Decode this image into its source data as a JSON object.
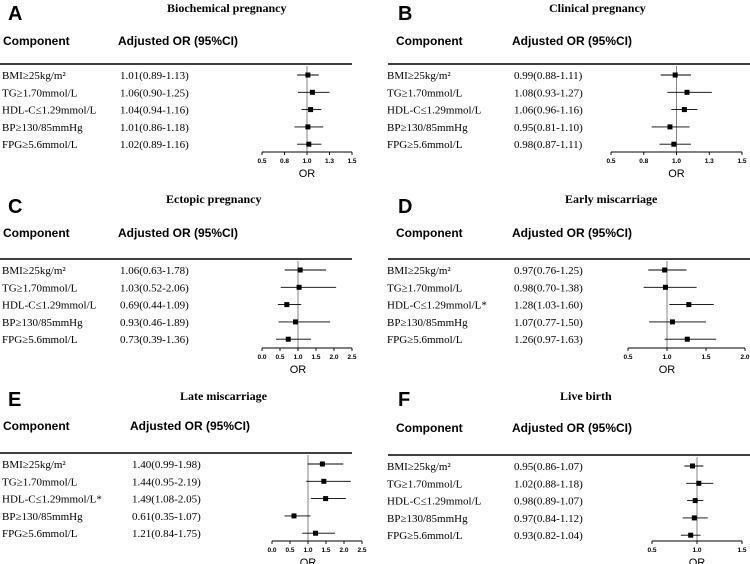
{
  "figure": {
    "header_component": "Component",
    "header_or": "Adjusted OR (95%CI)",
    "x_axis_label": "OR"
  },
  "chart_data": [
    {
      "type": "forest",
      "panel": "A",
      "title": "Biochemical pregnancy",
      "xlabel": "OR",
      "xlim": [
        0.5,
        1.5
      ],
      "ticks": [
        "0.5",
        "0.8",
        "1.0",
        "1.3",
        "1.5"
      ],
      "tick_values": [
        0.5,
        0.75,
        1.0,
        1.25,
        1.5
      ],
      "reference": 1.0,
      "rows": [
        {
          "component": "BMI≥25kg/m²",
          "label": "1.01(0.89-1.13)",
          "or": 1.01,
          "lo": 0.89,
          "hi": 1.13
        },
        {
          "component": "TG≥1.70mmol/L",
          "label": "1.06(0.90-1.25)",
          "or": 1.06,
          "lo": 0.9,
          "hi": 1.25
        },
        {
          "component": "HDL-C≤1.29mmol/L",
          "label": "1.04(0.94-1.16)",
          "or": 1.04,
          "lo": 0.94,
          "hi": 1.16
        },
        {
          "component": "BP≥130/85mmHg",
          "label": "1.01(0.86-1.18)",
          "or": 1.01,
          "lo": 0.86,
          "hi": 1.18
        },
        {
          "component": "FPG≥5.6mmol/L",
          "label": "1.02(0.89-1.16)",
          "or": 1.02,
          "lo": 0.89,
          "hi": 1.16
        }
      ]
    },
    {
      "type": "forest",
      "panel": "B",
      "title": "Clinical pregnancy",
      "xlabel": "OR",
      "xlim": [
        0.5,
        1.5
      ],
      "ticks": [
        "0.5",
        "0.8",
        "1.0",
        "1.3",
        "1.5"
      ],
      "tick_values": [
        0.5,
        0.75,
        1.0,
        1.25,
        1.5
      ],
      "reference": 1.0,
      "rows": [
        {
          "component": "BMI≥25kg/m²",
          "label": "0.99(0.88-1.11)",
          "or": 0.99,
          "lo": 0.88,
          "hi": 1.11
        },
        {
          "component": "TG≥1.70mmol/L",
          "label": "1.08(0.93-1.27)",
          "or": 1.08,
          "lo": 0.93,
          "hi": 1.27
        },
        {
          "component": "HDL-C≤1.29mmol/L",
          "label": "1.06(0.96-1.16)",
          "or": 1.06,
          "lo": 0.96,
          "hi": 1.16
        },
        {
          "component": "BP≥130/85mmHg",
          "label": "0.95(0.81-1.10)",
          "or": 0.95,
          "lo": 0.81,
          "hi": 1.1
        },
        {
          "component": "FPG≥5.6mmol/L",
          "label": "0.98(0.87-1.11)",
          "or": 0.98,
          "lo": 0.87,
          "hi": 1.11
        }
      ]
    },
    {
      "type": "forest",
      "panel": "C",
      "title": "Ectopic pregnancy",
      "xlabel": "OR",
      "xlim": [
        0.0,
        2.5
      ],
      "ticks": [
        "0.0",
        "0.5",
        "1.0",
        "1.5",
        "2.0",
        "2.5"
      ],
      "tick_values": [
        0.0,
        0.5,
        1.0,
        1.5,
        2.0,
        2.5
      ],
      "reference": 1.0,
      "rows": [
        {
          "component": "BMI≥25kg/m²",
          "label": "1.06(0.63-1.78)",
          "or": 1.06,
          "lo": 0.63,
          "hi": 1.78
        },
        {
          "component": "TG≥1.70mmol/L",
          "label": "1.03(0.52-2.06)",
          "or": 1.03,
          "lo": 0.52,
          "hi": 2.06
        },
        {
          "component": "HDL-C≤1.29mmol/L",
          "label": "0.69(0.44-1.09)",
          "or": 0.69,
          "lo": 0.44,
          "hi": 1.09
        },
        {
          "component": "BP≥130/85mmHg",
          "label": "0.93(0.46-1.89)",
          "or": 0.93,
          "lo": 0.46,
          "hi": 1.89
        },
        {
          "component": "FPG≥5.6mmol/L",
          "label": "0.73(0.39-1.36)",
          "or": 0.73,
          "lo": 0.39,
          "hi": 1.36
        }
      ]
    },
    {
      "type": "forest",
      "panel": "D",
      "title": "Early miscarriage",
      "xlabel": "OR",
      "xlim": [
        0.5,
        2.0
      ],
      "ticks": [
        "0.5",
        "1.0",
        "1.5",
        "2.0"
      ],
      "tick_values": [
        0.5,
        1.0,
        1.5,
        2.0
      ],
      "reference": 1.0,
      "rows": [
        {
          "component": "BMI≥25kg/m²",
          "label": "0.97(0.76-1.25)",
          "or": 0.97,
          "lo": 0.76,
          "hi": 1.25
        },
        {
          "component": "TG≥1.70mmol/L",
          "label": "0.98(0.70-1.38)",
          "or": 0.98,
          "lo": 0.7,
          "hi": 1.38
        },
        {
          "component": "HDL-C≤1.29mmol/L*",
          "label": "1.28(1.03-1.60)",
          "or": 1.28,
          "lo": 1.03,
          "hi": 1.6
        },
        {
          "component": "BP≥130/85mmHg",
          "label": "1.07(0.77-1.50)",
          "or": 1.07,
          "lo": 0.77,
          "hi": 1.5
        },
        {
          "component": "FPG≥5.6mmol/L",
          "label": "1.26(0.97-1.63)",
          "or": 1.26,
          "lo": 0.97,
          "hi": 1.63
        }
      ]
    },
    {
      "type": "forest",
      "panel": "E",
      "title": "Late miscarriage",
      "xlabel": "OR",
      "xlim": [
        0.0,
        2.5
      ],
      "ticks": [
        "0.0",
        "0.5",
        "1.0",
        "1.5",
        "2.0",
        "2.5"
      ],
      "tick_values": [
        0.0,
        0.5,
        1.0,
        1.5,
        2.0,
        2.5
      ],
      "reference": 1.0,
      "rows": [
        {
          "component": "BMI≥25kg/m²",
          "label": "1.40(0.99-1.98)",
          "or": 1.4,
          "lo": 0.99,
          "hi": 1.98
        },
        {
          "component": "TG≥1.70mmol/L",
          "label": "1.44(0.95-2.19)",
          "or": 1.44,
          "lo": 0.95,
          "hi": 2.19
        },
        {
          "component": "HDL-C≤1.29mmol/L*",
          "label": "1.49(1.08-2.05)",
          "or": 1.49,
          "lo": 1.08,
          "hi": 2.05
        },
        {
          "component": "BP≥130/85mmHg",
          "label": "0.61(0.35-1.07)",
          "or": 0.61,
          "lo": 0.35,
          "hi": 1.07
        },
        {
          "component": "FPG≥5.6mmol/L",
          "label": "1.21(0.84-1.75)",
          "or": 1.21,
          "lo": 0.84,
          "hi": 1.75
        }
      ]
    },
    {
      "type": "forest",
      "panel": "F",
      "title": "Live birth",
      "xlabel": "OR",
      "xlim": [
        0.5,
        1.5
      ],
      "ticks": [
        "0.5",
        "1.0",
        "1.5"
      ],
      "tick_values": [
        0.5,
        1.0,
        1.5
      ],
      "reference": 1.0,
      "rows": [
        {
          "component": "BMI≥25kg/m²",
          "label": "0.95(0.86-1.07)",
          "or": 0.95,
          "lo": 0.86,
          "hi": 1.07
        },
        {
          "component": "TG≥1.70mmol/L",
          "label": "1.02(0.88-1.18)",
          "or": 1.02,
          "lo": 0.88,
          "hi": 1.18
        },
        {
          "component": "HDL-C≤1.29mmol/L",
          "label": "0.98(0.89-1.07)",
          "or": 0.98,
          "lo": 0.89,
          "hi": 1.07
        },
        {
          "component": "BP≥130/85mmHg",
          "label": "0.97(0.84-1.12)",
          "or": 0.97,
          "lo": 0.84,
          "hi": 1.12
        },
        {
          "component": "FPG≥5.6mmol/L",
          "label": "0.93(0.82-1.04)",
          "or": 0.93,
          "lo": 0.82,
          "hi": 1.04
        }
      ]
    }
  ]
}
